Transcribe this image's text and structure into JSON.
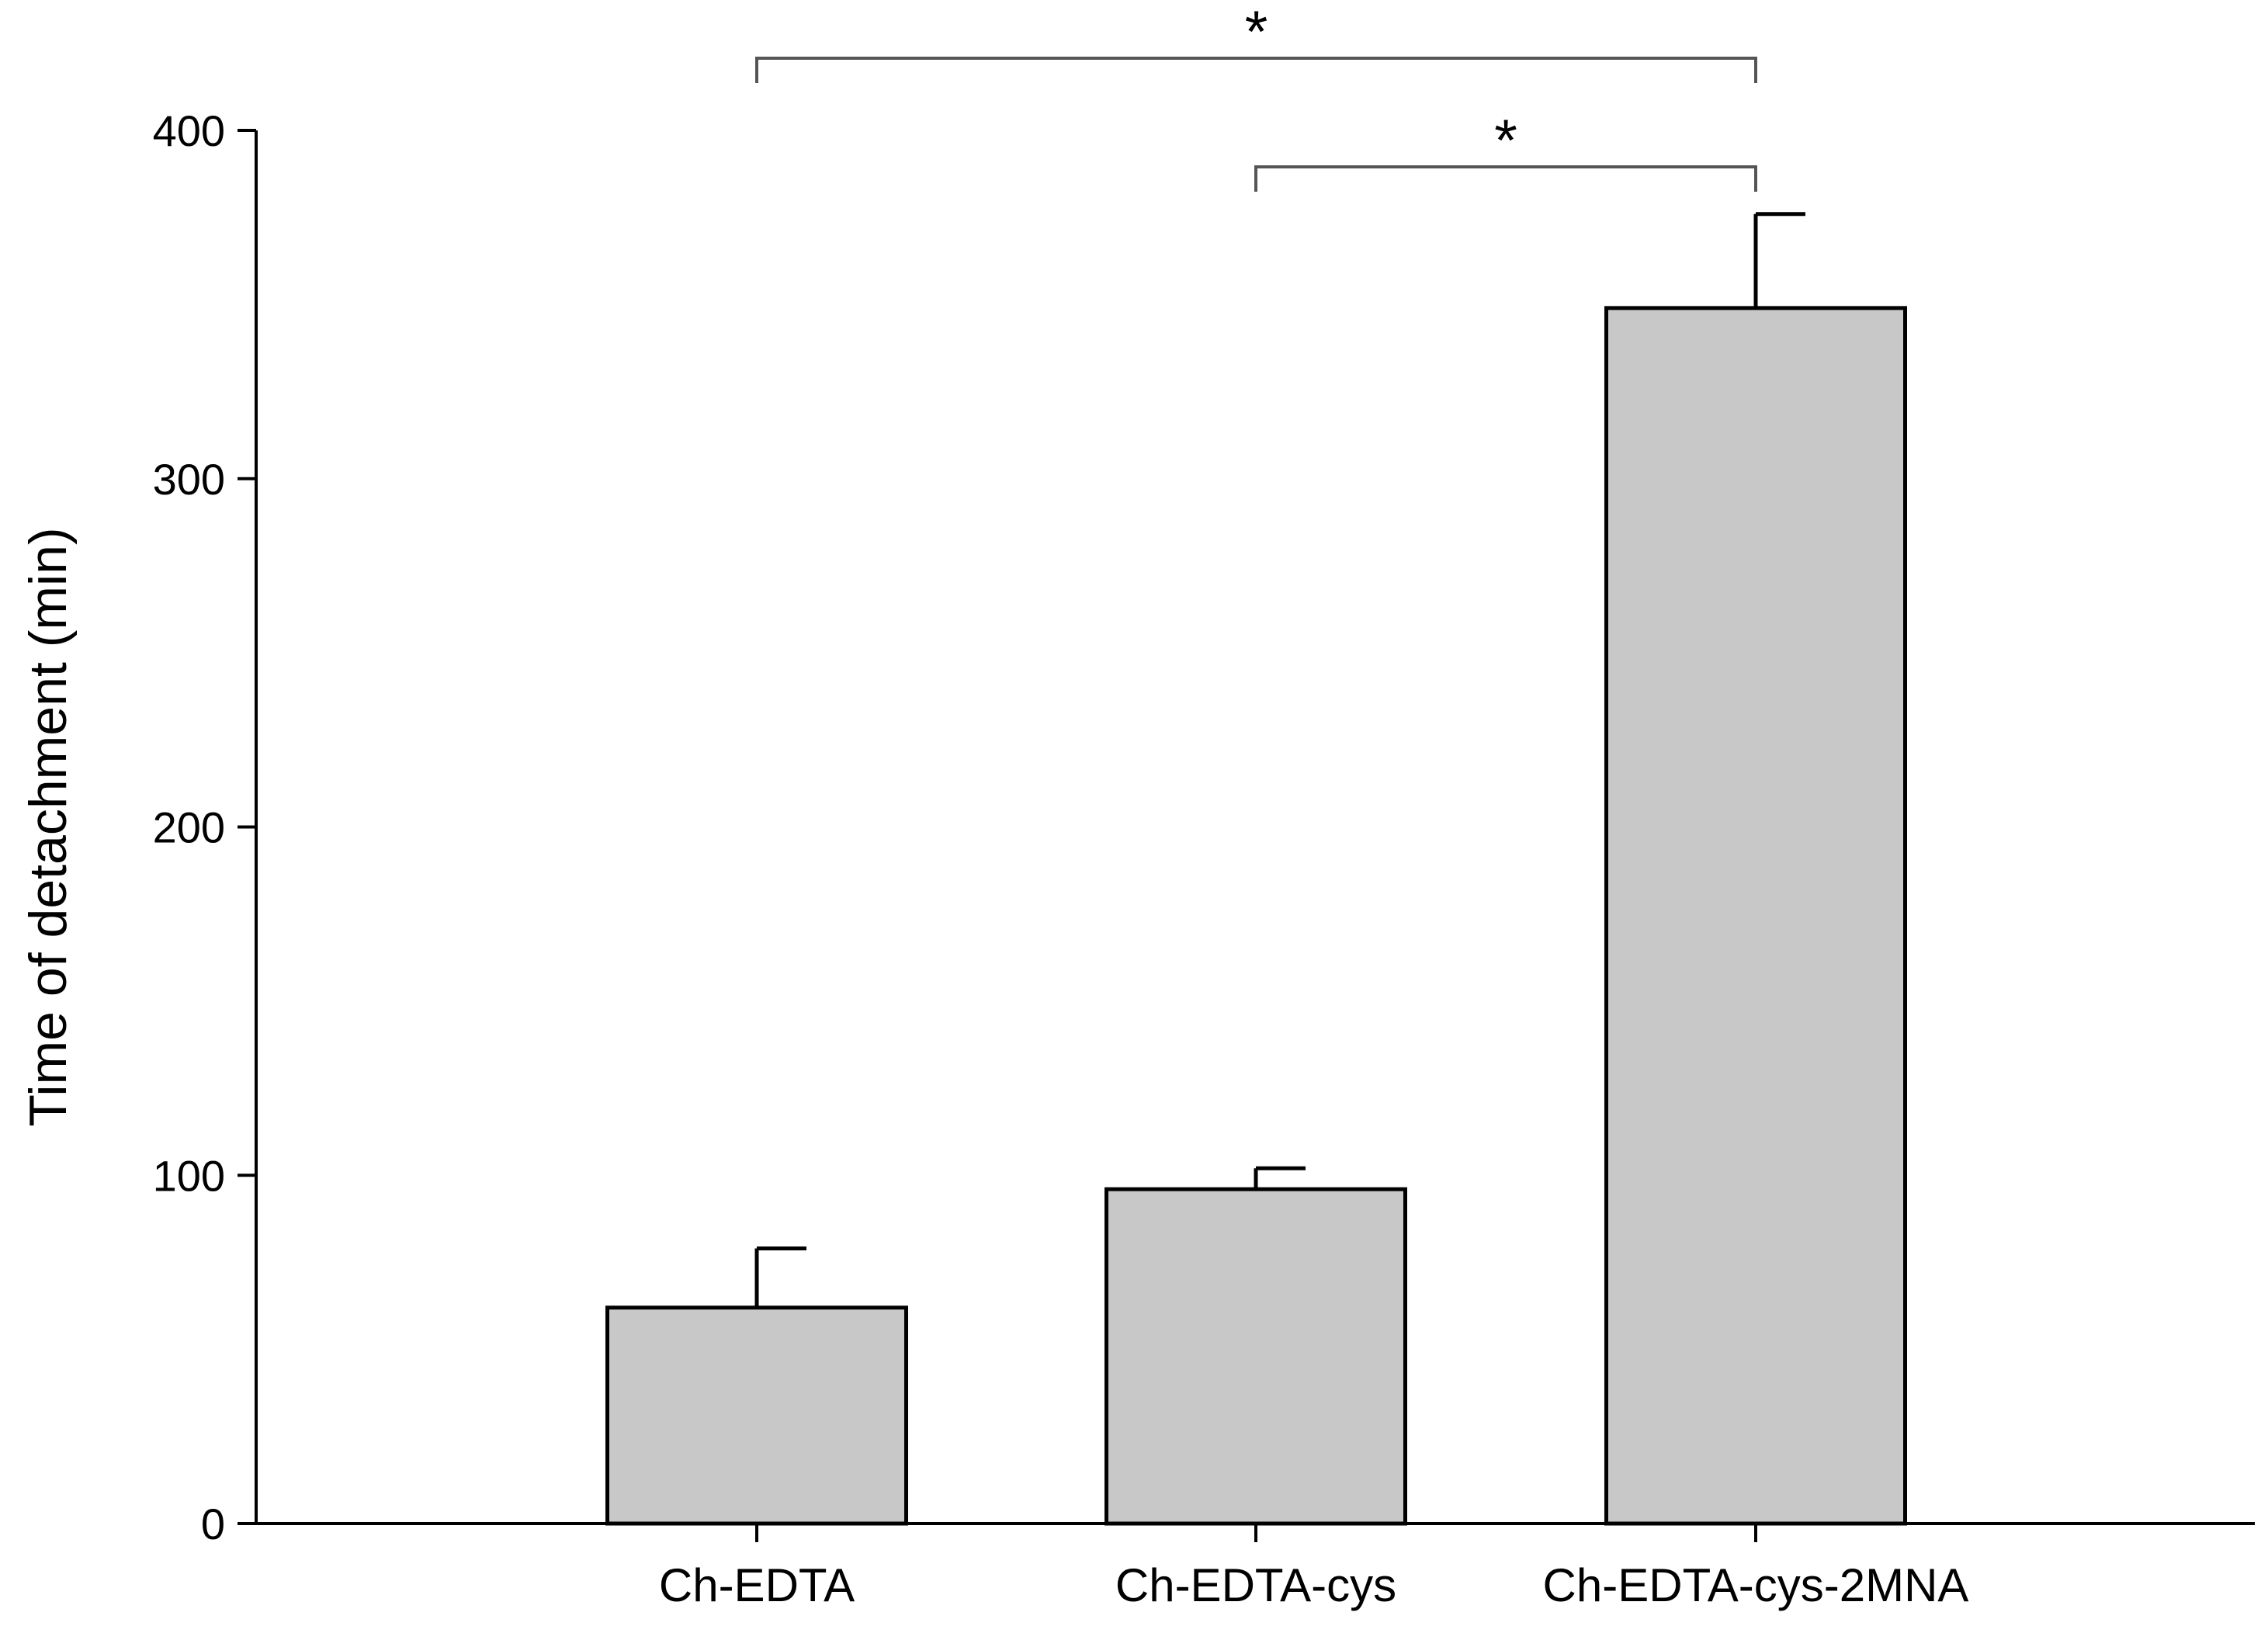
{
  "chart_data": {
    "type": "bar",
    "title": "",
    "xlabel": "",
    "ylabel": "Time of detachment (min)",
    "ylim": [
      0,
      400
    ],
    "yticks": [
      0,
      100,
      200,
      300,
      400
    ],
    "categories": [
      "Ch-EDTA",
      "Ch-EDTA-cys",
      "Ch-EDTA-cys-2MNA"
    ],
    "values": [
      62,
      96,
      349
    ],
    "errors": [
      17,
      6,
      27
    ],
    "bar_color": "#c8c8c8",
    "significance": [
      {
        "from": 0,
        "to": 2,
        "label": "*"
      },
      {
        "from": 1,
        "to": 2,
        "label": "*"
      }
    ]
  }
}
